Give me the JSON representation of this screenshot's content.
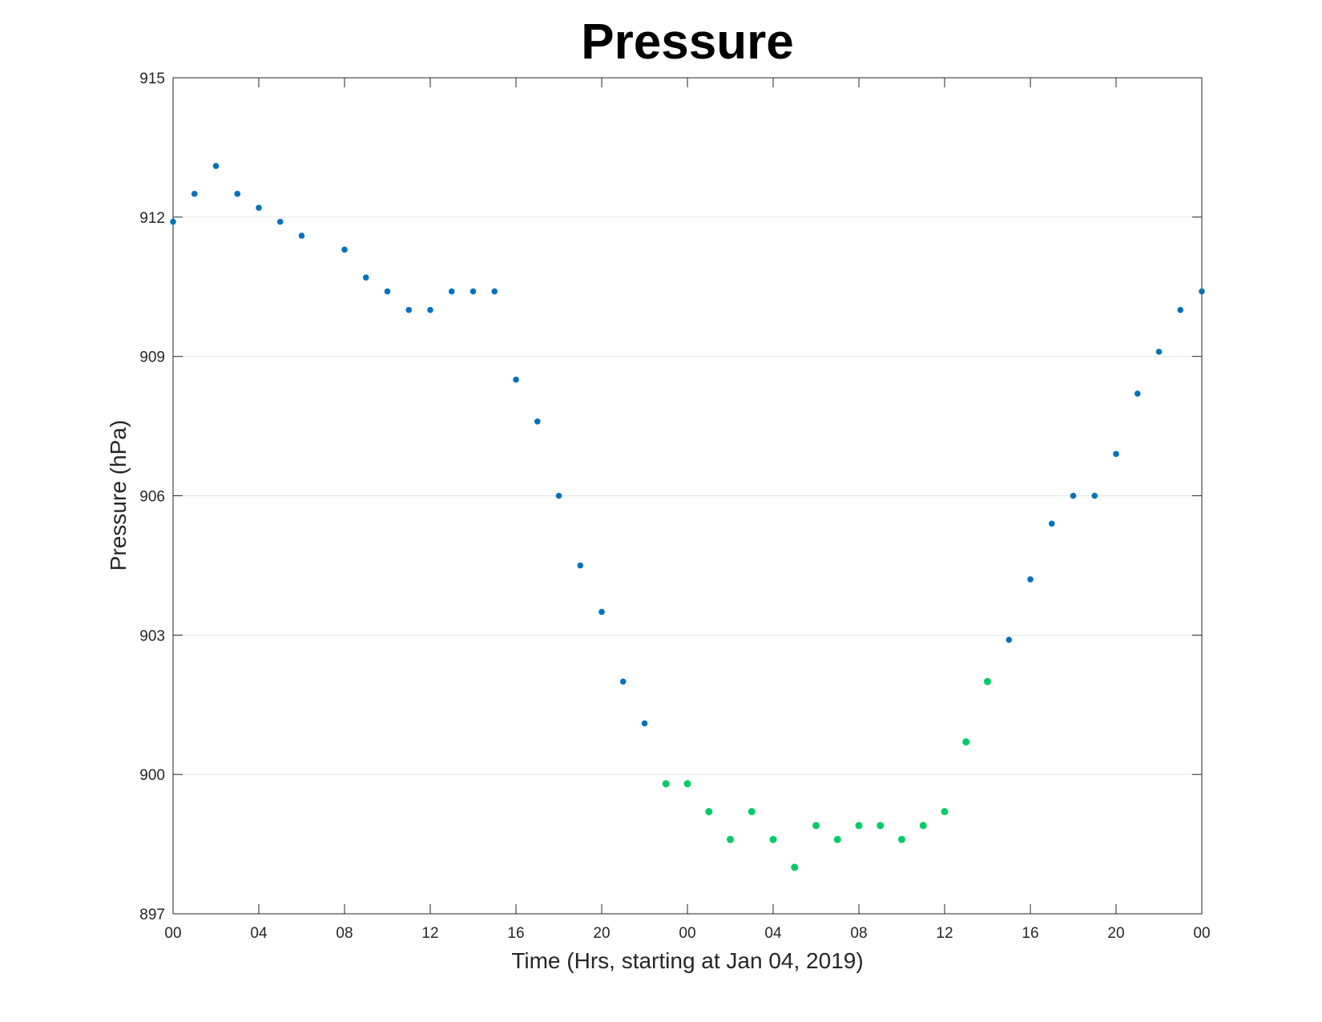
{
  "chart_data": {
    "type": "scatter",
    "title": "Pressure",
    "xlabel": "Time (Hrs, starting at Jan 04, 2019)",
    "ylabel": "Pressure (hPa)",
    "x_unit": "hours",
    "xlim": [
      0,
      48
    ],
    "ylim": [
      897,
      915
    ],
    "x_ticks": [
      0,
      4,
      8,
      12,
      16,
      20,
      24,
      28,
      32,
      36,
      40,
      44,
      48
    ],
    "x_tick_labels": [
      "00",
      "04",
      "08",
      "12",
      "16",
      "20",
      "00",
      "04",
      "08",
      "12",
      "16",
      "20",
      "00"
    ],
    "y_ticks": [
      897,
      900,
      903,
      906,
      909,
      912,
      915
    ],
    "y_tick_labels": [
      "897",
      "900",
      "903",
      "906",
      "909",
      "912",
      "915"
    ],
    "grid": {
      "y": true,
      "x": false
    },
    "series": [
      {
        "color": "#0072BD",
        "x": [
          0,
          1,
          2,
          3,
          4,
          5,
          6,
          8,
          9,
          10,
          11,
          12,
          13,
          14,
          15,
          16,
          17,
          18,
          19,
          20,
          21,
          22,
          39,
          40,
          41,
          42,
          43,
          44,
          45,
          46,
          47,
          48
        ],
        "values": [
          911.9,
          912.5,
          913.1,
          912.5,
          912.2,
          911.9,
          911.6,
          911.3,
          910.7,
          910.4,
          910.0,
          910.0,
          910.4,
          910.4,
          910.4,
          908.5,
          907.6,
          906.0,
          904.5,
          903.5,
          902.0,
          901.1,
          902.9,
          904.2,
          905.4,
          906.0,
          906.0,
          906.9,
          908.2,
          909.1,
          910.0,
          910.4
        ]
      },
      {
        "color": "#00CC66",
        "x": [
          23,
          24,
          25,
          26,
          27,
          28,
          29,
          30,
          31,
          32,
          33,
          34,
          35,
          36,
          37,
          38
        ],
        "values": [
          899.8,
          899.8,
          899.2,
          898.6,
          899.2,
          898.6,
          898.0,
          898.9,
          898.6,
          898.9,
          898.9,
          898.6,
          898.9,
          899.2,
          900.7,
          902.0
        ]
      }
    ]
  }
}
